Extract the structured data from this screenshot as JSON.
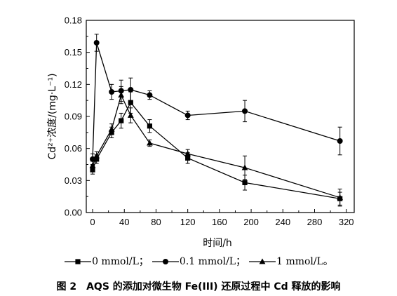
{
  "chart_data": {
    "type": "line",
    "xlabel": "时间/h",
    "ylabel": "Cd²⁺浓度/(mg·L⁻¹)",
    "xlim": [
      -8,
      330
    ],
    "ylim": [
      0,
      0.18
    ],
    "xticks": [
      0,
      40,
      80,
      120,
      160,
      200,
      240,
      280,
      320
    ],
    "yticks": [
      0.0,
      0.03,
      0.06,
      0.09,
      0.12,
      0.15,
      0.18
    ],
    "xtick_labels": [
      "0",
      "40",
      "80",
      "120",
      "160",
      "200",
      "240",
      "280",
      "320"
    ],
    "ytick_labels": [
      "0.00",
      "0.03",
      "0.06",
      "0.09",
      "0.12",
      "0.15",
      "0.18"
    ],
    "grid": false,
    "legend_position": "bottom",
    "series": [
      {
        "name": "0 mmol/L；",
        "marker": "square",
        "x": [
          0,
          5,
          24,
          36,
          48,
          72,
          120,
          192,
          312
        ],
        "y": [
          0.04,
          0.05,
          0.075,
          0.086,
          0.103,
          0.081,
          0.051,
          0.028,
          0.013
        ],
        "err": [
          0.004,
          0.004,
          0.005,
          0.007,
          0.01,
          0.006,
          0.005,
          0.007,
          0.006
        ]
      },
      {
        "name": "0.1 mmol/L；",
        "marker": "circle",
        "x": [
          0,
          5,
          24,
          36,
          48,
          72,
          120,
          192,
          312
        ],
        "y": [
          0.05,
          0.159,
          0.113,
          0.114,
          0.115,
          0.11,
          0.091,
          0.095,
          0.067
        ],
        "err": [
          0.005,
          0.008,
          0.007,
          0.01,
          0.011,
          0.004,
          0.004,
          0.01,
          0.013
        ]
      },
      {
        "name": "1 mmol/L。",
        "marker": "triangle",
        "x": [
          0,
          5,
          24,
          36,
          48,
          72,
          120,
          192,
          312
        ],
        "y": [
          0.044,
          0.053,
          0.078,
          0.11,
          0.091,
          0.065,
          0.055,
          0.042,
          0.014
        ],
        "err": [
          0.004,
          0.004,
          0.005,
          0.008,
          0.007,
          0.003,
          0.004,
          0.011,
          0.008
        ]
      }
    ]
  },
  "caption": "图 2　AQS 的添加对微生物 Fe(III) 还原过程中 Cd 释放的影响"
}
